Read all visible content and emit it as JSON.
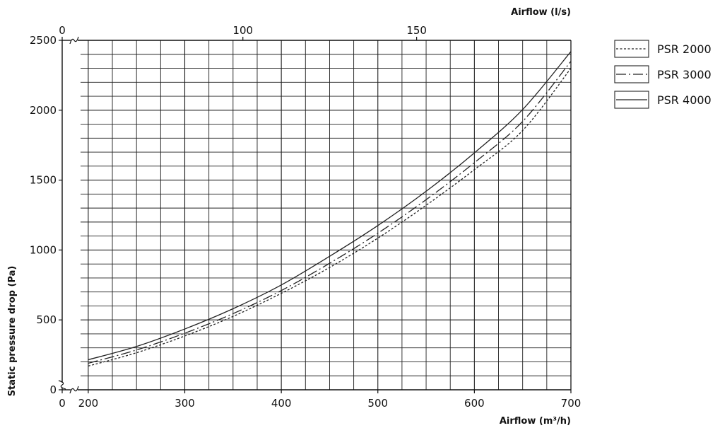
{
  "chart_data": {
    "type": "line",
    "x_bottom": {
      "label": "Airflow (m³/h)",
      "range": [
        173,
        700
      ],
      "ticks": [
        200,
        300,
        400,
        500,
        600,
        700
      ],
      "origin_label": "0",
      "broken": true
    },
    "x_top": {
      "label": "Airflow (l/s)",
      "range": [
        48,
        194.4
      ],
      "ticks": [
        100,
        150
      ],
      "origin_label": "0",
      "broken": true
    },
    "y": {
      "label": "Static pressure drop (Pa)",
      "range": [
        0,
        2500
      ],
      "ticks": [
        0,
        500,
        1000,
        1500,
        2000,
        2500
      ],
      "broken": true
    },
    "grid": true,
    "legend_placement": "top-right",
    "series": [
      {
        "name": "PSR 2000",
        "style": "dotted",
        "x": [
          200,
          250,
          300,
          350,
          400,
          450,
          500,
          550,
          600,
          650,
          700
        ],
        "y": [
          170,
          265,
          385,
          525,
          690,
          875,
          1085,
          1320,
          1575,
          1855,
          2300
        ]
      },
      {
        "name": "PSR 3000",
        "style": "dash-dot",
        "x": [
          200,
          250,
          300,
          350,
          400,
          450,
          500,
          550,
          600,
          650,
          700
        ],
        "y": [
          190,
          285,
          405,
          545,
          710,
          905,
          1120,
          1360,
          1625,
          1920,
          2350
        ]
      },
      {
        "name": "PSR 4000",
        "style": "solid",
        "x": [
          200,
          250,
          300,
          350,
          400,
          450,
          500,
          550,
          600,
          650,
          700
        ],
        "y": [
          215,
          310,
          435,
          580,
          750,
          955,
          1175,
          1420,
          1695,
          2005,
          2420
        ]
      }
    ]
  }
}
